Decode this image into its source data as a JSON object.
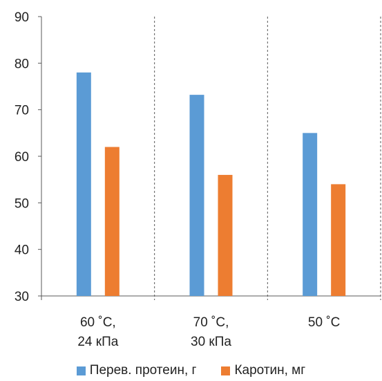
{
  "chart_data": {
    "type": "bar",
    "categories": [
      [
        "60 ˚C,",
        "24 кПа"
      ],
      [
        "70 ˚C,",
        "30 кПа"
      ],
      [
        "50 ˚C"
      ]
    ],
    "series": [
      {
        "name": "Перев. протеин, г",
        "color": "#5B9BD5",
        "values": [
          78,
          73.2,
          65
        ]
      },
      {
        "name": "Каротин, мг",
        "color": "#ED7D31",
        "values": [
          62,
          56,
          54
        ]
      }
    ],
    "ylim": [
      30,
      90
    ],
    "yticks": [
      30,
      40,
      50,
      60,
      70,
      80,
      90
    ],
    "legend_position": "bottom",
    "grid": false,
    "category_separators": "dashed"
  }
}
